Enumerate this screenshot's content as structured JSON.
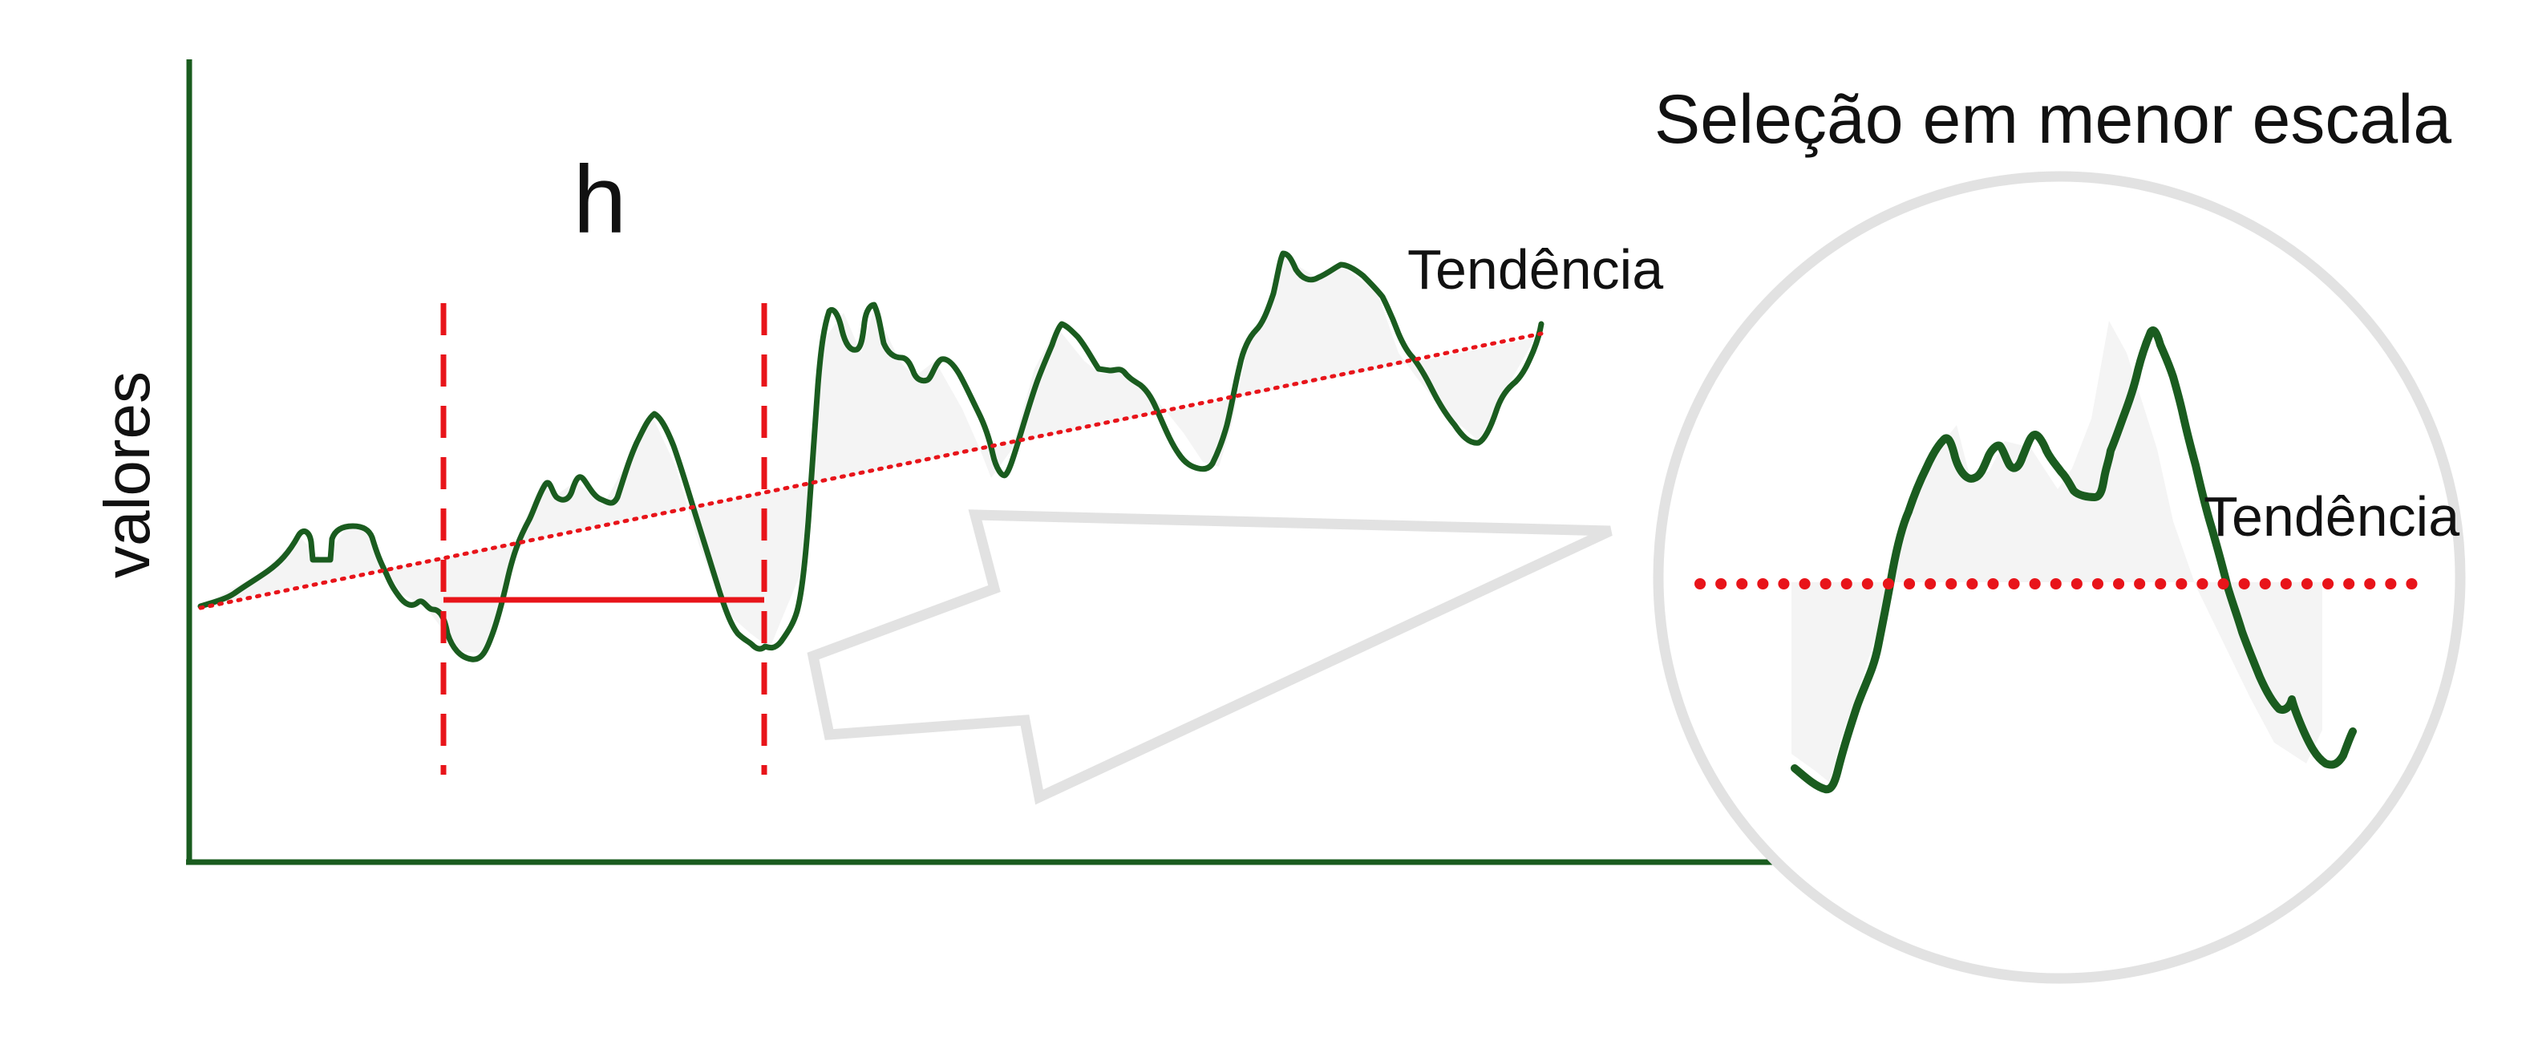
{
  "labels": {
    "y_axis": "valores",
    "window": "h",
    "trend_main": "Tendência",
    "inset_title": "Seleção em menor escala",
    "trend_inset": "Tendência"
  },
  "colors": {
    "series": "#1a5c1f",
    "axis": "#1a5c1f",
    "trend": "#e8141a",
    "window": "#e8141a",
    "inset_circle": "#e2e2e2",
    "arrow": "#e2e2e2",
    "fill": "#f4f4f4"
  },
  "icons": {
    "arrow": "hollow-arrow-icon"
  }
}
